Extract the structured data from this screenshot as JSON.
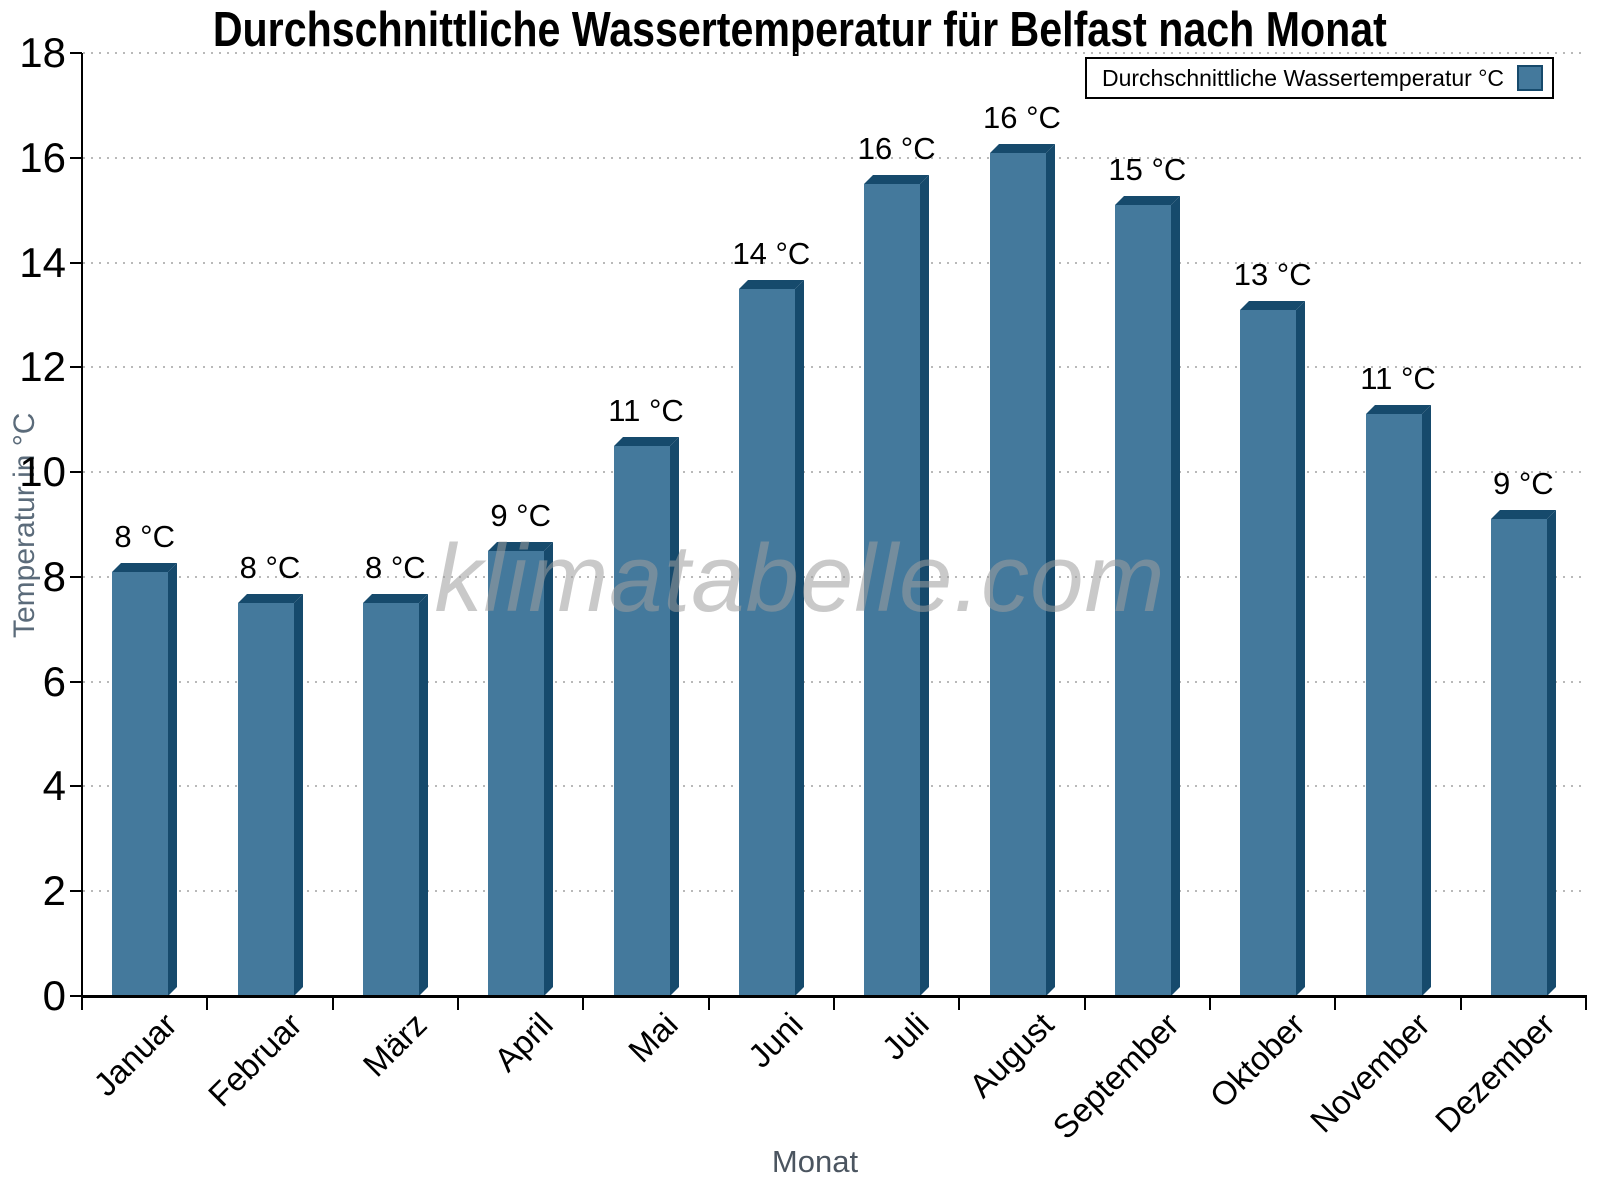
{
  "title": "Durchschnittliche Wassertemperatur für Belfast nach Monat",
  "legend": {
    "label": "Durchschnittliche Wassertemperatur °C",
    "position": "top-right"
  },
  "watermark": "klimatabelle.com",
  "axes": {
    "y_title": "Temperatur in °C",
    "x_title": "Monat"
  },
  "colors": {
    "bar_face": "#44799c",
    "bar_edge": "#164a6c",
    "gridline": "#b9b9b9",
    "axis": "#000000",
    "axis_title": "#5b6b7a",
    "watermark": "#9e9e9e"
  },
  "chart_data": {
    "type": "bar",
    "title": "Durchschnittliche Wassertemperatur für Belfast nach Monat",
    "categories": [
      "Januar",
      "Februar",
      "März",
      "April",
      "Mai",
      "Juni",
      "Juli",
      "August",
      "September",
      "Oktober",
      "November",
      "Dezember"
    ],
    "series": [
      {
        "name": "Durchschnittliche Wassertemperatur °C",
        "values": [
          8.1,
          7.5,
          7.5,
          8.5,
          10.5,
          13.5,
          15.5,
          16.1,
          15.1,
          13.1,
          11.1,
          9.1
        ]
      }
    ],
    "bar_labels": [
      "8 °C",
      "8 °C",
      "8 °C",
      "9 °C",
      "11 °C",
      "14 °C",
      "16 °C",
      "16 °C",
      "15 °C",
      "13 °C",
      "11 °C",
      "9 °C"
    ],
    "xlabel": "Monat",
    "ylabel": "Temperatur in °C",
    "ylim": [
      0,
      18
    ],
    "ytick_step": 2,
    "ytick_labels": [
      "0",
      "2",
      "4",
      "6",
      "8",
      "10",
      "12",
      "14",
      "16",
      "18"
    ],
    "grid": "horizontal dotted every 2",
    "legend_entries": [
      "Durchschnittliche Wassertemperatur °C"
    ],
    "legend_position": "top-right",
    "style": "pseudo-3d bars"
  }
}
